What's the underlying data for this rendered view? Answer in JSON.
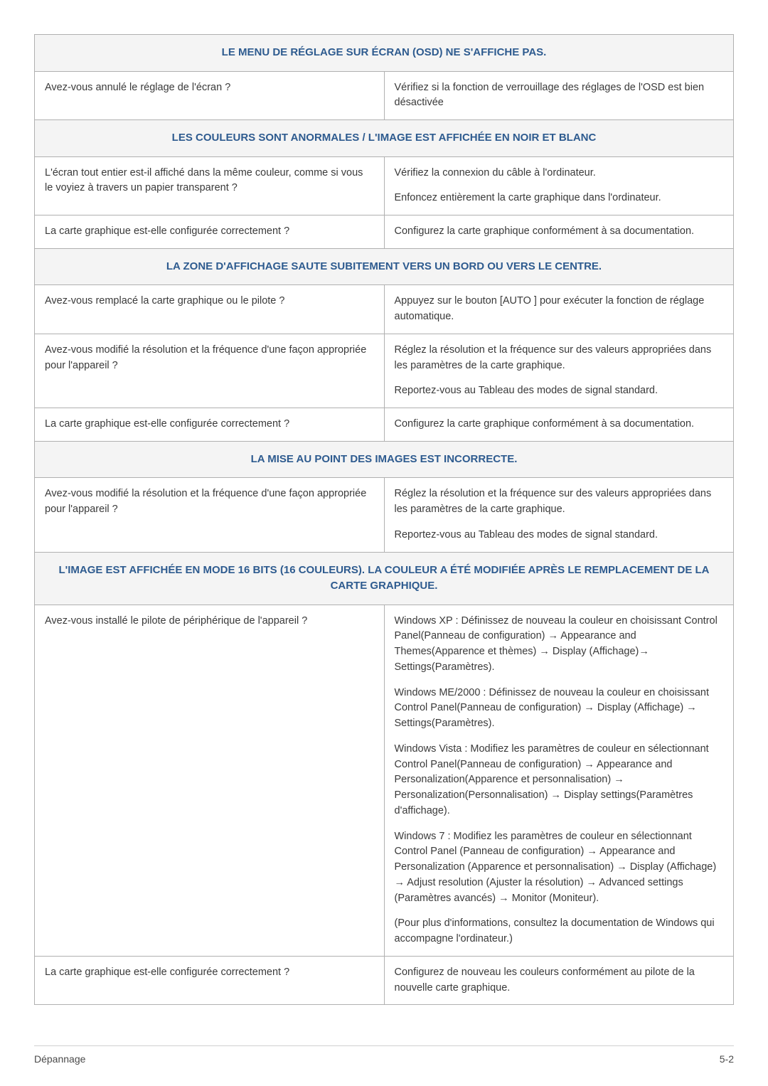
{
  "colors": {
    "border": "#b0b0b0",
    "header_bg": "#f4f4f4",
    "header_text": "#2e5b8f",
    "body_text": "#3a3a3a",
    "footer_text": "#4a4a4a",
    "footer_border": "#d0d0d0"
  },
  "sections": [
    {
      "title": "LE MENU DE RÉGLAGE SUR ÉCRAN (OSD) NE S'AFFICHE PAS.",
      "rows": [
        {
          "left": [
            "Avez-vous annulé le réglage de l'écran ?"
          ],
          "right": [
            "Vérifiez si la fonction de verrouillage des réglages de l'OSD est bien désactivée"
          ]
        }
      ]
    },
    {
      "title": "LES COULEURS SONT ANORMALES / L'IMAGE EST AFFICHÉE EN NOIR ET BLANC",
      "rows": [
        {
          "left": [
            "L'écran tout entier est-il affiché dans la même couleur, comme si vous le voyiez à travers un papier transparent ?"
          ],
          "right": [
            "Vérifiez la connexion du câble à l'ordinateur.",
            "Enfoncez entièrement la carte graphique dans l'ordinateur."
          ]
        },
        {
          "left": [
            "La carte graphique est-elle configurée correctement ?"
          ],
          "right": [
            "Configurez la carte graphique conformément à sa documentation."
          ]
        }
      ]
    },
    {
      "title": "LA ZONE D'AFFICHAGE SAUTE SUBITEMENT VERS UN BORD OU VERS LE CENTRE.",
      "rows": [
        {
          "left": [
            "Avez-vous remplacé la carte graphique ou le pilote ?"
          ],
          "right": [
            "Appuyez sur le bouton [AUTO ] pour exécuter la fonction de réglage automatique."
          ]
        },
        {
          "left": [
            "Avez-vous modifié la résolution et la fréquence d'une façon appropriée pour l'appareil ?"
          ],
          "right": [
            "Réglez la résolution et la fréquence sur des valeurs appropriées dans les paramètres de la carte graphique.",
            "Reportez-vous au Tableau des modes de signal standard."
          ]
        },
        {
          "left": [
            "La carte graphique est-elle configurée correctement ?"
          ],
          "right": [
            "Configurez la carte graphique conformément à sa documentation."
          ]
        }
      ]
    },
    {
      "title": "LA MISE AU POINT DES IMAGES EST INCORRECTE.",
      "rows": [
        {
          "left": [
            "Avez-vous modifié la résolution et la fréquence d'une façon appropriée pour l'appareil ?"
          ],
          "right": [
            "Réglez la résolution et la fréquence sur des valeurs appropriées dans les paramètres de la carte graphique.",
            "Reportez-vous au Tableau des modes de signal standard."
          ]
        }
      ]
    },
    {
      "title": "L'IMAGE EST AFFICHÉE EN MODE 16 BITS (16 COULEURS). LA COULEUR A ÉTÉ MODIFIÉE APRÈS LE REMPLACEMENT DE LA CARTE GRAPHIQUE.",
      "rows": [
        {
          "left": [
            "Avez-vous installé le pilote de périphérique de l'appareil ?"
          ],
          "right": [
            "Windows XP : Définissez de nouveau la couleur en choisissant Control Panel(Panneau de configuration) → Appearance and Themes(Apparence et thèmes) → Display (Affichage)→ Settings(Paramètres).",
            "Windows ME/2000 : Définissez de nouveau la couleur en choisissant Control Panel(Panneau de configuration) → Display (Affichage) → Settings(Paramètres).",
            "Windows Vista  : Modifiez les paramètres de couleur en sélectionnant Control Panel(Panneau de configuration) → Appearance and Personalization(Apparence et personnalisation) → Personalization(Personnalisation) → Display settings(Paramètres d'affichage).",
            "Windows 7 : Modifiez les paramètres de couleur en sélectionnant Control Panel (Panneau de configuration) → Appearance and Personalization (Apparence et personnalisation) → Display (Affichage) → Adjust resolution (Ajuster la résolution) → Advanced settings (Paramètres avancés) → Monitor (Moniteur).",
            "(Pour plus d'informations, consultez la documentation de Windows qui accompagne l'ordinateur.)"
          ]
        },
        {
          "left": [
            "La carte graphique est-elle configurée correctement ?"
          ],
          "right": [
            "Configurez de nouveau les couleurs conformément au pilote de la nouvelle carte graphique."
          ]
        }
      ]
    }
  ],
  "footer": {
    "left": "Dépannage",
    "right": "5-2"
  }
}
